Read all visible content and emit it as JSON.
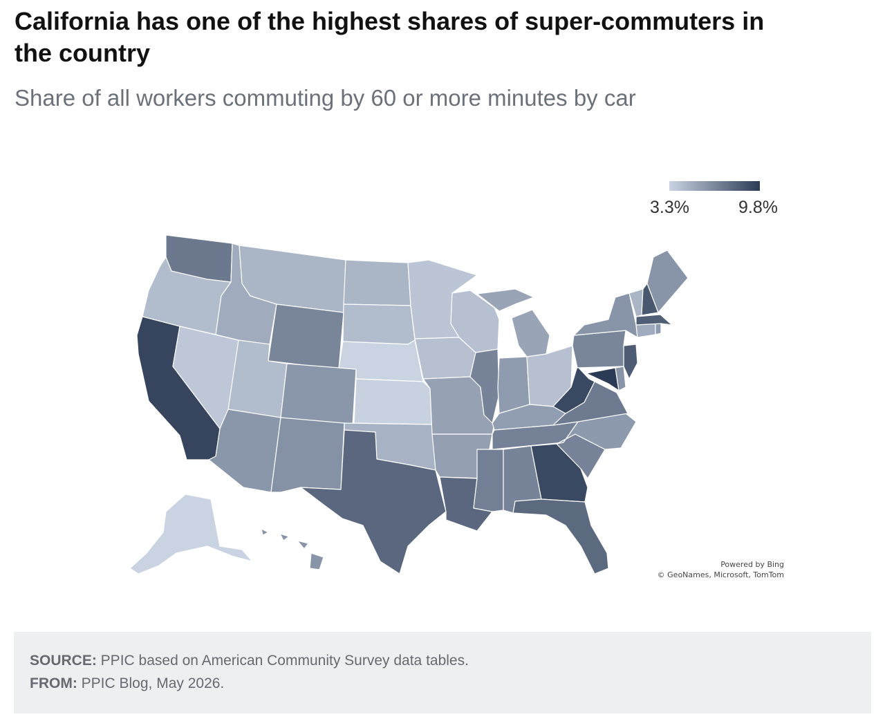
{
  "title": "California has one of the highest shares of super-commuters in the country",
  "subtitle": "Share of all workers commuting by 60 or more minutes by car",
  "legend": {
    "min": "3.3%",
    "max": "9.8%",
    "min_value": 3.3,
    "max_value": 9.8,
    "color_low": "#c9d3e2",
    "color_high": "#2c3b55"
  },
  "map": {
    "type": "choropleth",
    "region": "United States",
    "attribution": {
      "line1": "Powered by Bing",
      "line2": "© GeoNames, Microsoft, TomTom"
    },
    "states": [
      {
        "id": "WA",
        "name": "Washington",
        "value": 7.2
      },
      {
        "id": "OR",
        "name": "Oregon",
        "value": 4.3
      },
      {
        "id": "CA",
        "name": "California",
        "value": 9.4
      },
      {
        "id": "NV",
        "name": "Nevada",
        "value": 3.8
      },
      {
        "id": "ID",
        "name": "Idaho",
        "value": 5.0
      },
      {
        "id": "MT",
        "name": "Montana",
        "value": 4.6
      },
      {
        "id": "WY",
        "name": "Wyoming",
        "value": 6.6
      },
      {
        "id": "UT",
        "name": "Utah",
        "value": 4.3
      },
      {
        "id": "CO",
        "name": "Colorado",
        "value": 5.9
      },
      {
        "id": "AZ",
        "name": "Arizona",
        "value": 5.9
      },
      {
        "id": "NM",
        "name": "New Mexico",
        "value": 6.1
      },
      {
        "id": "ND",
        "name": "North Dakota",
        "value": 4.6
      },
      {
        "id": "SD",
        "name": "South Dakota",
        "value": 4.3
      },
      {
        "id": "NE",
        "name": "Nebraska",
        "value": 3.3
      },
      {
        "id": "KS",
        "name": "Kansas",
        "value": 3.4
      },
      {
        "id": "OK",
        "name": "Oklahoma",
        "value": 4.7
      },
      {
        "id": "TX",
        "name": "Texas",
        "value": 7.9
      },
      {
        "id": "MN",
        "name": "Minnesota",
        "value": 3.9
      },
      {
        "id": "IA",
        "name": "Iowa",
        "value": 4.1
      },
      {
        "id": "MO",
        "name": "Missouri",
        "value": 5.4
      },
      {
        "id": "AR",
        "name": "Arkansas",
        "value": 5.5
      },
      {
        "id": "LA",
        "name": "Louisiana",
        "value": 7.9
      },
      {
        "id": "WI",
        "name": "Wisconsin",
        "value": 4.1
      },
      {
        "id": "IL",
        "name": "Illinois",
        "value": 6.7
      },
      {
        "id": "MI",
        "name": "Michigan",
        "value": 5.3
      },
      {
        "id": "IN",
        "name": "Indiana",
        "value": 5.7
      },
      {
        "id": "OH",
        "name": "Ohio",
        "value": 4.1
      },
      {
        "id": "KY",
        "name": "Kentucky",
        "value": 5.6
      },
      {
        "id": "TN",
        "name": "Tennessee",
        "value": 6.8
      },
      {
        "id": "MS",
        "name": "Mississippi",
        "value": 6.9
      },
      {
        "id": "AL",
        "name": "Alabama",
        "value": 6.7
      },
      {
        "id": "GA",
        "name": "Georgia",
        "value": 9.2
      },
      {
        "id": "FL",
        "name": "Florida",
        "value": 7.8
      },
      {
        "id": "SC",
        "name": "South Carolina",
        "value": 6.7
      },
      {
        "id": "NC",
        "name": "North Carolina",
        "value": 5.8
      },
      {
        "id": "VA",
        "name": "Virginia",
        "value": 7.1
      },
      {
        "id": "WV",
        "name": "West Virginia",
        "value": 9.2
      },
      {
        "id": "MD",
        "name": "Maryland",
        "value": 9.8
      },
      {
        "id": "DE",
        "name": "Delaware",
        "value": 6.0
      },
      {
        "id": "NJ",
        "name": "New Jersey",
        "value": 8.4
      },
      {
        "id": "PA",
        "name": "Pennsylvania",
        "value": 6.6
      },
      {
        "id": "NY",
        "name": "New York",
        "value": 6.0
      },
      {
        "id": "CT",
        "name": "Connecticut",
        "value": 5.0
      },
      {
        "id": "RI",
        "name": "Rhode Island",
        "value": 5.7
      },
      {
        "id": "MA",
        "name": "Massachusetts",
        "value": 8.3
      },
      {
        "id": "VT",
        "name": "Vermont",
        "value": 4.6
      },
      {
        "id": "NH",
        "name": "New Hampshire",
        "value": 8.6
      },
      {
        "id": "ME",
        "name": "Maine",
        "value": 6.0
      },
      {
        "id": "AK",
        "name": "Alaska",
        "value": 3.3
      },
      {
        "id": "HI",
        "name": "Hawaii",
        "value": 6.0
      }
    ]
  },
  "footer": {
    "source_label": "SOURCE:",
    "source_text": " PPIC based on American Community Survey data tables.",
    "from_label": "FROM:",
    "from_text": " PPIC Blog, May 2026."
  }
}
